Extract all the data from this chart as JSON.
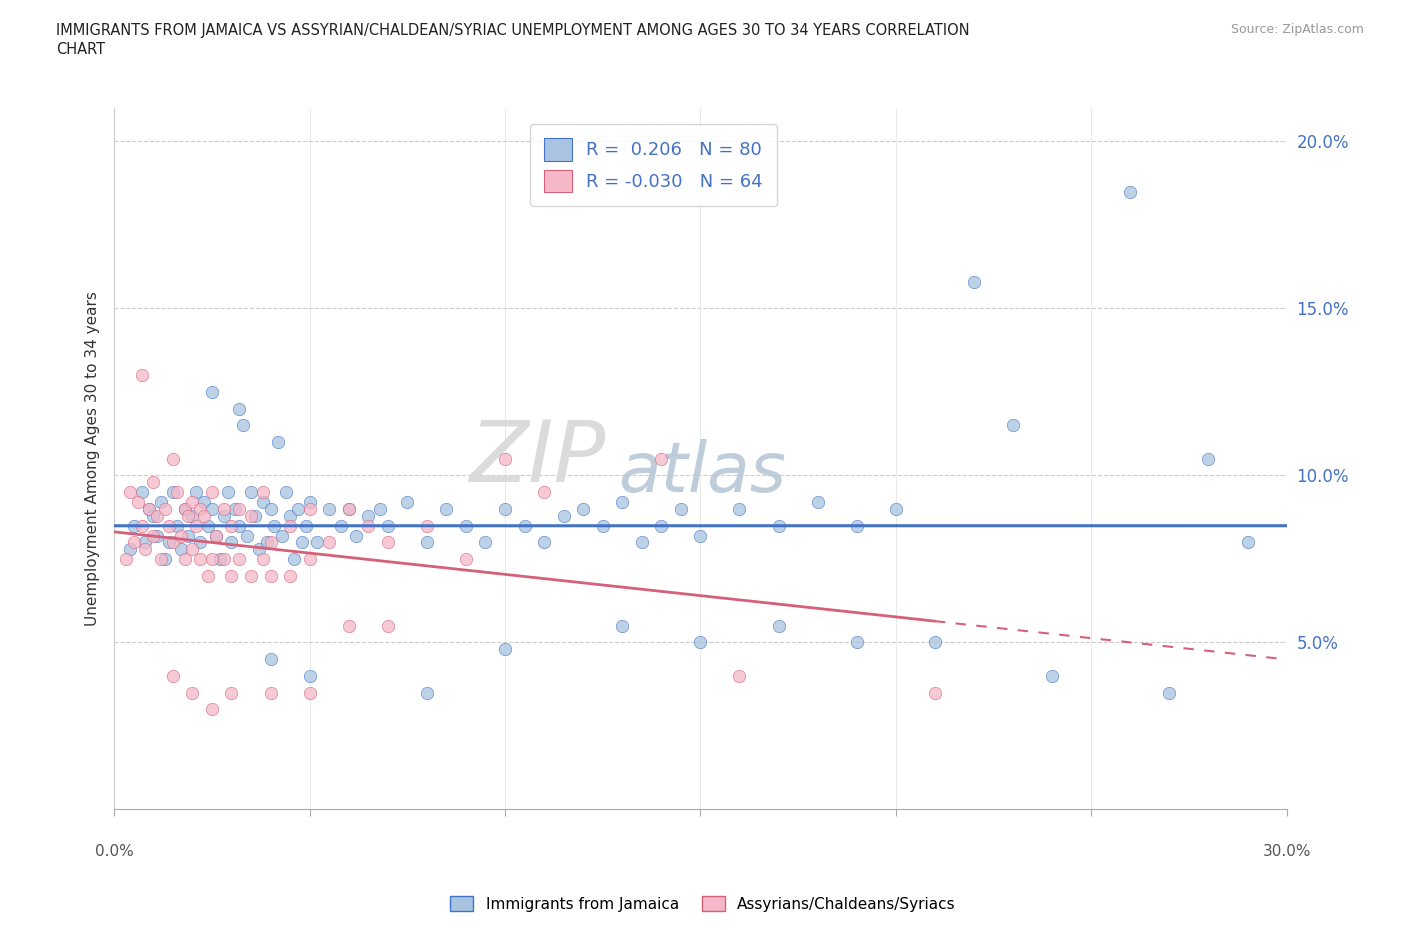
{
  "title_line1": "IMMIGRANTS FROM JAMAICA VS ASSYRIAN/CHALDEAN/SYRIAC UNEMPLOYMENT AMONG AGES 30 TO 34 YEARS CORRELATION",
  "title_line2": "CHART",
  "source": "Source: ZipAtlas.com",
  "ylabel": "Unemployment Among Ages 30 to 34 years",
  "xlim": [
    0,
    30
  ],
  "ylim": [
    0,
    21
  ],
  "yticks": [
    5,
    10,
    15,
    20
  ],
  "ytick_labels": [
    "5.0%",
    "10.0%",
    "15.0%",
    "20.0%"
  ],
  "color_jamaica": "#a8c4e0",
  "color_assyrian": "#f4b8c8",
  "color_jamaica_line": "#4472c4",
  "color_assyrian_line": "#d4607a",
  "watermark_zip": "ZIP",
  "watermark_atlas": "atlas",
  "jamaica_dots": [
    [
      0.4,
      7.8
    ],
    [
      0.5,
      8.5
    ],
    [
      0.7,
      9.5
    ],
    [
      0.8,
      8.0
    ],
    [
      0.9,
      9.0
    ],
    [
      1.0,
      8.8
    ],
    [
      1.1,
      8.2
    ],
    [
      1.2,
      9.2
    ],
    [
      1.3,
      7.5
    ],
    [
      1.4,
      8.0
    ],
    [
      1.5,
      9.5
    ],
    [
      1.6,
      8.5
    ],
    [
      1.7,
      7.8
    ],
    [
      1.8,
      9.0
    ],
    [
      1.9,
      8.2
    ],
    [
      2.0,
      8.8
    ],
    [
      2.1,
      9.5
    ],
    [
      2.2,
      8.0
    ],
    [
      2.3,
      9.2
    ],
    [
      2.4,
      8.5
    ],
    [
      2.5,
      9.0
    ],
    [
      2.6,
      8.2
    ],
    [
      2.7,
      7.5
    ],
    [
      2.8,
      8.8
    ],
    [
      2.9,
      9.5
    ],
    [
      3.0,
      8.0
    ],
    [
      3.1,
      9.0
    ],
    [
      3.2,
      8.5
    ],
    [
      3.3,
      11.5
    ],
    [
      3.4,
      8.2
    ],
    [
      3.5,
      9.5
    ],
    [
      3.6,
      8.8
    ],
    [
      3.7,
      7.8
    ],
    [
      3.8,
      9.2
    ],
    [
      3.9,
      8.0
    ],
    [
      4.0,
      9.0
    ],
    [
      4.1,
      8.5
    ],
    [
      4.2,
      11.0
    ],
    [
      4.3,
      8.2
    ],
    [
      4.4,
      9.5
    ],
    [
      4.5,
      8.8
    ],
    [
      4.6,
      7.5
    ],
    [
      4.7,
      9.0
    ],
    [
      4.8,
      8.0
    ],
    [
      4.9,
      8.5
    ],
    [
      5.0,
      9.2
    ],
    [
      5.2,
      8.0
    ],
    [
      5.5,
      9.0
    ],
    [
      5.8,
      8.5
    ],
    [
      6.0,
      9.0
    ],
    [
      6.2,
      8.2
    ],
    [
      6.5,
      8.8
    ],
    [
      6.8,
      9.0
    ],
    [
      7.0,
      8.5
    ],
    [
      7.5,
      9.2
    ],
    [
      8.0,
      8.0
    ],
    [
      8.5,
      9.0
    ],
    [
      9.0,
      8.5
    ],
    [
      9.5,
      8.0
    ],
    [
      10.0,
      9.0
    ],
    [
      10.5,
      8.5
    ],
    [
      11.0,
      8.0
    ],
    [
      11.5,
      8.8
    ],
    [
      12.0,
      9.0
    ],
    [
      12.5,
      8.5
    ],
    [
      13.0,
      9.2
    ],
    [
      13.5,
      8.0
    ],
    [
      14.0,
      8.5
    ],
    [
      14.5,
      9.0
    ],
    [
      15.0,
      8.2
    ],
    [
      16.0,
      9.0
    ],
    [
      17.0,
      8.5
    ],
    [
      18.0,
      9.2
    ],
    [
      19.0,
      8.5
    ],
    [
      20.0,
      9.0
    ],
    [
      22.0,
      15.8
    ],
    [
      23.0,
      11.5
    ],
    [
      26.0,
      18.5
    ],
    [
      28.0,
      10.5
    ],
    [
      3.2,
      12.0
    ],
    [
      2.5,
      12.5
    ],
    [
      4.0,
      4.5
    ],
    [
      5.0,
      4.0
    ],
    [
      8.0,
      3.5
    ],
    [
      10.0,
      4.8
    ],
    [
      13.0,
      5.5
    ],
    [
      15.0,
      5.0
    ],
    [
      17.0,
      5.5
    ],
    [
      19.0,
      5.0
    ],
    [
      21.0,
      5.0
    ],
    [
      24.0,
      4.0
    ],
    [
      27.0,
      3.5
    ],
    [
      29.0,
      8.0
    ]
  ],
  "assyrian_dots": [
    [
      0.3,
      7.5
    ],
    [
      0.4,
      9.5
    ],
    [
      0.5,
      8.0
    ],
    [
      0.6,
      9.2
    ],
    [
      0.7,
      8.5
    ],
    [
      0.8,
      7.8
    ],
    [
      0.9,
      9.0
    ],
    [
      1.0,
      8.2
    ],
    [
      1.0,
      9.8
    ],
    [
      1.1,
      8.8
    ],
    [
      1.2,
      7.5
    ],
    [
      1.3,
      9.0
    ],
    [
      1.4,
      8.5
    ],
    [
      1.5,
      10.5
    ],
    [
      1.5,
      8.0
    ],
    [
      1.6,
      9.5
    ],
    [
      1.7,
      8.2
    ],
    [
      1.8,
      9.0
    ],
    [
      1.8,
      7.5
    ],
    [
      1.9,
      8.8
    ],
    [
      2.0,
      9.2
    ],
    [
      2.0,
      7.8
    ],
    [
      2.1,
      8.5
    ],
    [
      2.2,
      9.0
    ],
    [
      2.2,
      7.5
    ],
    [
      2.3,
      8.8
    ],
    [
      2.4,
      7.0
    ],
    [
      2.5,
      9.5
    ],
    [
      2.5,
      7.5
    ],
    [
      2.6,
      8.2
    ],
    [
      2.8,
      9.0
    ],
    [
      2.8,
      7.5
    ],
    [
      3.0,
      8.5
    ],
    [
      3.0,
      7.0
    ],
    [
      3.2,
      9.0
    ],
    [
      3.2,
      7.5
    ],
    [
      3.5,
      8.8
    ],
    [
      3.5,
      7.0
    ],
    [
      3.8,
      9.5
    ],
    [
      3.8,
      7.5
    ],
    [
      4.0,
      8.0
    ],
    [
      4.0,
      7.0
    ],
    [
      4.5,
      8.5
    ],
    [
      4.5,
      7.0
    ],
    [
      5.0,
      9.0
    ],
    [
      5.0,
      7.5
    ],
    [
      5.5,
      8.0
    ],
    [
      6.0,
      9.0
    ],
    [
      6.5,
      8.5
    ],
    [
      7.0,
      8.0
    ],
    [
      8.0,
      8.5
    ],
    [
      9.0,
      7.5
    ],
    [
      10.0,
      10.5
    ],
    [
      11.0,
      9.5
    ],
    [
      14.0,
      10.5
    ],
    [
      0.7,
      13.0
    ],
    [
      1.5,
      4.0
    ],
    [
      2.0,
      3.5
    ],
    [
      2.5,
      3.0
    ],
    [
      3.0,
      3.5
    ],
    [
      4.0,
      3.5
    ],
    [
      5.0,
      3.5
    ],
    [
      6.0,
      5.5
    ],
    [
      7.0,
      5.5
    ],
    [
      16.0,
      4.0
    ],
    [
      21.0,
      3.5
    ]
  ]
}
